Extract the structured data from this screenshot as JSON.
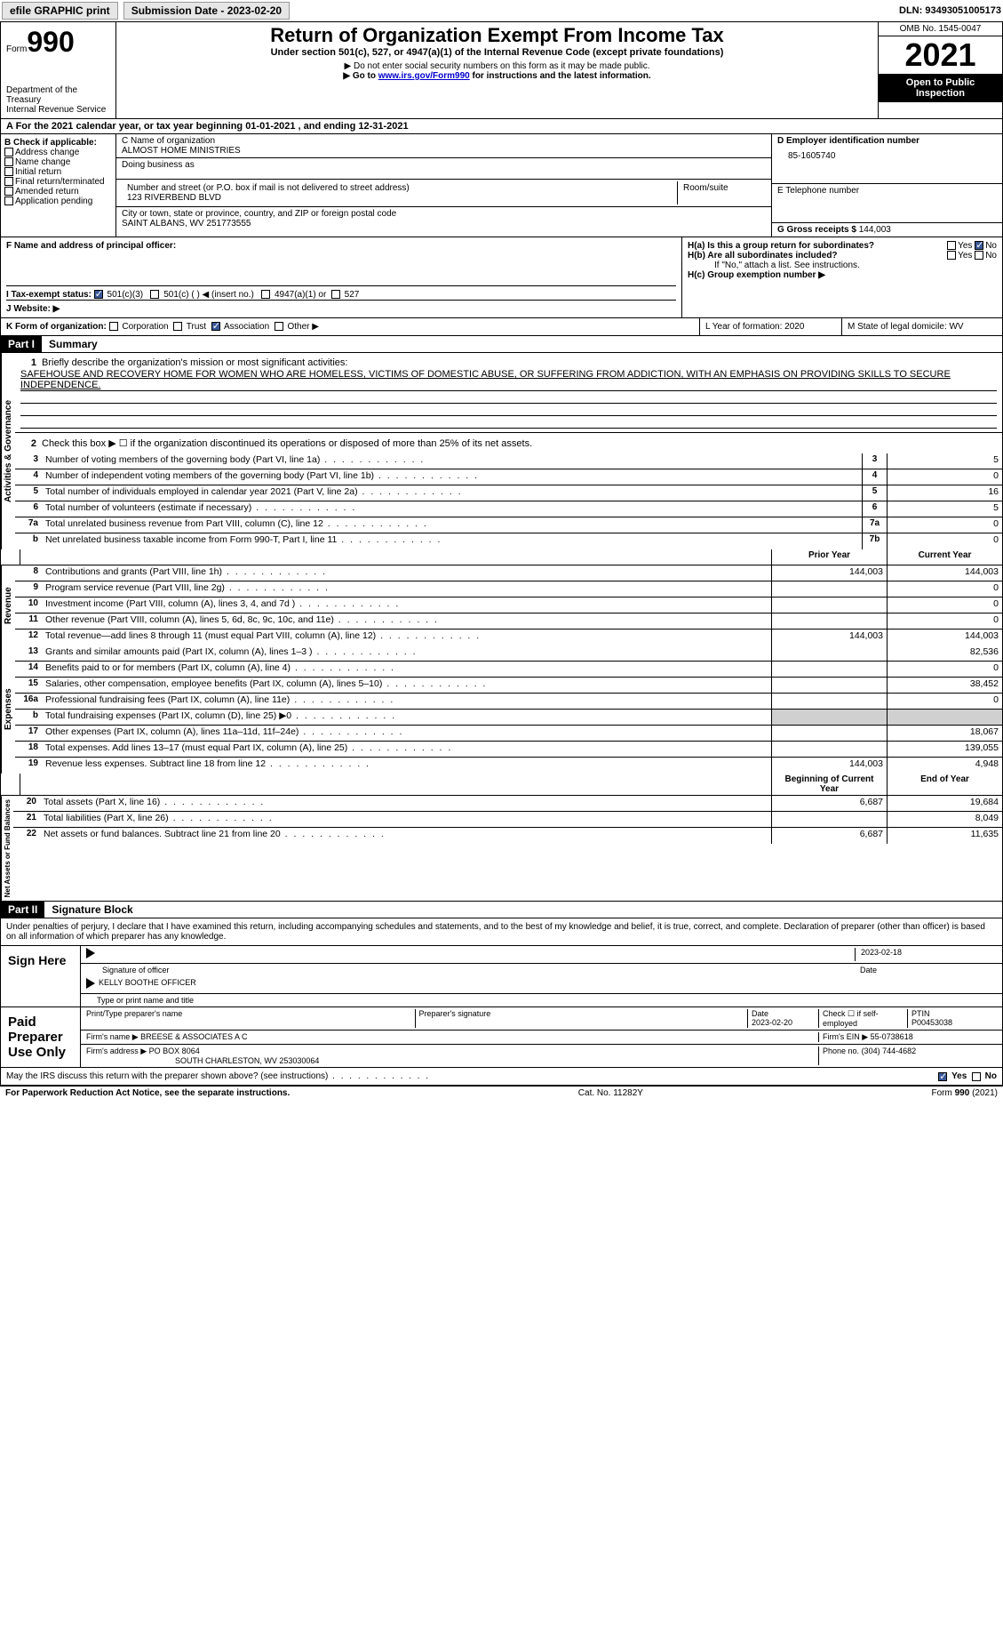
{
  "topbar": {
    "efile": "efile GRAPHIC print",
    "submission_label": "Submission Date - 2023-02-20",
    "dln_label": "DLN: 93493051005173"
  },
  "header": {
    "form_word": "Form",
    "form_num": "990",
    "dept1": "Department of the Treasury",
    "dept2": "Internal Revenue Service",
    "title": "Return of Organization Exempt From Income Tax",
    "subtitle": "Under section 501(c), 527, or 4947(a)(1) of the Internal Revenue Code (except private foundations)",
    "note1": "▶ Do not enter social security numbers on this form as it may be made public.",
    "note2_pre": "▶ Go to ",
    "note2_link": "www.irs.gov/Form990",
    "note2_post": " for instructions and the latest information.",
    "omb": "OMB No. 1545-0047",
    "year": "2021",
    "open": "Open to Public Inspection"
  },
  "sectionA": "A For the 2021 calendar year, or tax year beginning 01-01-2021   , and ending 12-31-2021",
  "sectionB": {
    "label": "B Check if applicable:",
    "items": [
      "Address change",
      "Name change",
      "Initial return",
      "Final return/terminated",
      "Amended return",
      "Application pending"
    ]
  },
  "sectionC": {
    "name_label": "C Name of organization",
    "name": "ALMOST HOME MINISTRIES",
    "dba_label": "Doing business as",
    "addr_label": "Number and street (or P.O. box if mail is not delivered to street address)",
    "room_label": "Room/suite",
    "addr": "123 RIVERBEND BLVD",
    "city_label": "City or town, state or province, country, and ZIP or foreign postal code",
    "city": "SAINT ALBANS, WV  251773555"
  },
  "sectionD": {
    "label": "D Employer identification number",
    "ein": "85-1605740",
    "e_label": "E Telephone number",
    "g_label": "G Gross receipts $",
    "g_val": "144,003"
  },
  "sectionF": {
    "label": "F Name and address of principal officer:"
  },
  "sectionH": {
    "ha": "H(a)  Is this a group return for subordinates?",
    "hb": "H(b)  Are all subordinates included?",
    "hb_note": "If \"No,\" attach a list. See instructions.",
    "hc": "H(c)  Group exemption number ▶",
    "yes": "Yes",
    "no": "No"
  },
  "sectionI": {
    "label": "I  Tax-exempt status:",
    "opts": [
      "501(c)(3)",
      "501(c) (  ) ◀ (insert no.)",
      "4947(a)(1) or",
      "527"
    ]
  },
  "sectionJ": {
    "label": "J  Website: ▶"
  },
  "sectionK": {
    "label": "K Form of organization:",
    "opts": [
      "Corporation",
      "Trust",
      "Association",
      "Other ▶"
    ]
  },
  "sectionL": {
    "label": "L Year of formation: 2020"
  },
  "sectionM": {
    "label": "M State of legal domicile: WV"
  },
  "part1": {
    "hdr": "Part I",
    "title": "Summary",
    "vtab1": "Activities & Governance",
    "vtab2": "Revenue",
    "vtab3": "Expenses",
    "vtab4": "Net Assets or Fund Balances",
    "line1_label": "Briefly describe the organization's mission or most significant activities:",
    "line1_text": "SAFEHOUSE AND RECOVERY HOME FOR WOMEN WHO ARE HOMELESS, VICTIMS OF DOMESTIC ABUSE, OR SUFFERING FROM ADDICTION, WITH AN EMPHASIS ON PROVIDING SKILLS TO SECURE INDEPENDENCE.",
    "line2": "Check this box ▶ ☐ if the organization discontinued its operations or disposed of more than 25% of its net assets.",
    "lines_ag": [
      {
        "n": "3",
        "t": "Number of voting members of the governing body (Part VI, line 1a)",
        "box": "3",
        "v": "5"
      },
      {
        "n": "4",
        "t": "Number of independent voting members of the governing body (Part VI, line 1b)",
        "box": "4",
        "v": "0"
      },
      {
        "n": "5",
        "t": "Total number of individuals employed in calendar year 2021 (Part V, line 2a)",
        "box": "5",
        "v": "16"
      },
      {
        "n": "6",
        "t": "Total number of volunteers (estimate if necessary)",
        "box": "6",
        "v": "5"
      },
      {
        "n": "7a",
        "t": "Total unrelated business revenue from Part VIII, column (C), line 12",
        "box": "7a",
        "v": "0"
      },
      {
        "n": "b",
        "t": "Net unrelated business taxable income from Form 990-T, Part I, line 11",
        "box": "7b",
        "v": "0"
      }
    ],
    "col_prior": "Prior Year",
    "col_current": "Current Year",
    "rev": [
      {
        "n": "8",
        "t": "Contributions and grants (Part VIII, line 1h)",
        "p": "144,003",
        "c": "144,003"
      },
      {
        "n": "9",
        "t": "Program service revenue (Part VIII, line 2g)",
        "p": "",
        "c": "0"
      },
      {
        "n": "10",
        "t": "Investment income (Part VIII, column (A), lines 3, 4, and 7d )",
        "p": "",
        "c": "0"
      },
      {
        "n": "11",
        "t": "Other revenue (Part VIII, column (A), lines 5, 6d, 8c, 9c, 10c, and 11e)",
        "p": "",
        "c": "0"
      },
      {
        "n": "12",
        "t": "Total revenue—add lines 8 through 11 (must equal Part VIII, column (A), line 12)",
        "p": "144,003",
        "c": "144,003"
      }
    ],
    "exp": [
      {
        "n": "13",
        "t": "Grants and similar amounts paid (Part IX, column (A), lines 1–3 )",
        "p": "",
        "c": "82,536"
      },
      {
        "n": "14",
        "t": "Benefits paid to or for members (Part IX, column (A), line 4)",
        "p": "",
        "c": "0"
      },
      {
        "n": "15",
        "t": "Salaries, other compensation, employee benefits (Part IX, column (A), lines 5–10)",
        "p": "",
        "c": "38,452"
      },
      {
        "n": "16a",
        "t": "Professional fundraising fees (Part IX, column (A), line 11e)",
        "p": "",
        "c": "0"
      },
      {
        "n": "b",
        "t": "Total fundraising expenses (Part IX, column (D), line 25) ▶0",
        "p": "shade",
        "c": "shade"
      },
      {
        "n": "17",
        "t": "Other expenses (Part IX, column (A), lines 11a–11d, 11f–24e)",
        "p": "",
        "c": "18,067"
      },
      {
        "n": "18",
        "t": "Total expenses. Add lines 13–17 (must equal Part IX, column (A), line 25)",
        "p": "",
        "c": "139,055"
      },
      {
        "n": "19",
        "t": "Revenue less expenses. Subtract line 18 from line 12",
        "p": "144,003",
        "c": "4,948"
      }
    ],
    "col_begin": "Beginning of Current Year",
    "col_end": "End of Year",
    "net": [
      {
        "n": "20",
        "t": "Total assets (Part X, line 16)",
        "p": "6,687",
        "c": "19,684"
      },
      {
        "n": "21",
        "t": "Total liabilities (Part X, line 26)",
        "p": "",
        "c": "8,049"
      },
      {
        "n": "22",
        "t": "Net assets or fund balances. Subtract line 21 from line 20",
        "p": "6,687",
        "c": "11,635"
      }
    ]
  },
  "part2": {
    "hdr": "Part II",
    "title": "Signature Block",
    "decl": "Under penalties of perjury, I declare that I have examined this return, including accompanying schedules and statements, and to the best of my knowledge and belief, it is true, correct, and complete. Declaration of preparer (other than officer) is based on all information of which preparer has any knowledge.",
    "sign_here": "Sign Here",
    "sig_date": "2023-02-18",
    "sig_officer_label": "Signature of officer",
    "sig_date_label": "Date",
    "officer_name": "KELLY BOOTHE  OFFICER",
    "officer_name_label": "Type or print name and title",
    "paid": "Paid Preparer Use Only",
    "prep_name_label": "Print/Type preparer's name",
    "prep_sig_label": "Preparer's signature",
    "prep_date_label": "Date",
    "prep_date": "2023-02-20",
    "check_self": "Check ☐ if self-employed",
    "ptin_label": "PTIN",
    "ptin": "P00453038",
    "firm_name_label": "Firm's name    ▶",
    "firm_name": "BREESE & ASSOCIATES A C",
    "firm_ein_label": "Firm's EIN ▶",
    "firm_ein": "55-0738618",
    "firm_addr_label": "Firm's address ▶",
    "firm_addr1": "PO BOX 8064",
    "firm_addr2": "SOUTH CHARLESTON, WV  253030064",
    "phone_label": "Phone no.",
    "phone": "(304) 744-4682",
    "discuss": "May the IRS discuss this return with the preparer shown above? (see instructions)"
  },
  "footer": {
    "left": "For Paperwork Reduction Act Notice, see the separate instructions.",
    "mid": "Cat. No. 11282Y",
    "right": "Form 990 (2021)"
  }
}
